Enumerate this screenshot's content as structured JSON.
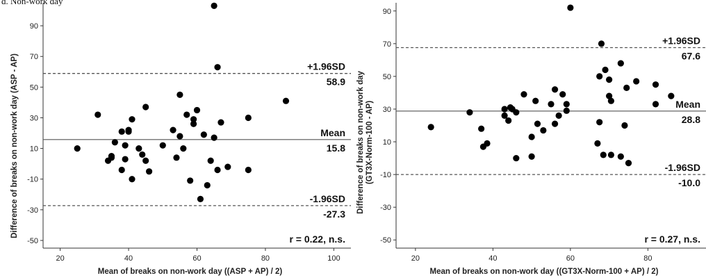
{
  "page": {
    "top_label": "d. Non-work day"
  },
  "chart_data": [
    {
      "type": "scatter",
      "title": "",
      "xlabel": "Mean of breaks on non-work day ((ASP + AP) / 2)",
      "ylabel": "Difference of breaks on non-work day (ASP - AP)",
      "xlim": [
        15,
        105
      ],
      "ylim": [
        -55,
        105
      ],
      "xticks": [
        20,
        40,
        60,
        80,
        100
      ],
      "yticks": [
        -50,
        -30,
        -10,
        10,
        30,
        50,
        70,
        90
      ],
      "grid": false,
      "lines": [
        {
          "name": "+1.96SD",
          "value": 58.9,
          "label": "+1.96SD",
          "value_label": "58.9",
          "style": "dashed"
        },
        {
          "name": "Mean",
          "value": 15.8,
          "label": "Mean",
          "value_label": "15.8",
          "style": "solid"
        },
        {
          "name": "-1.96SD",
          "value": -27.3,
          "label": "-1.96SD",
          "value_label": "-27.3",
          "style": "dashed"
        }
      ],
      "annotation": "r = 0.22, n.s.",
      "points": [
        [
          25,
          10
        ],
        [
          31,
          32
        ],
        [
          34,
          2
        ],
        [
          35,
          4
        ],
        [
          35,
          5
        ],
        [
          36,
          14
        ],
        [
          38,
          21
        ],
        [
          38,
          -4
        ],
        [
          39,
          12
        ],
        [
          39,
          3
        ],
        [
          40,
          22
        ],
        [
          40,
          21
        ],
        [
          41,
          -10
        ],
        [
          41,
          29
        ],
        [
          43,
          10
        ],
        [
          44,
          6
        ],
        [
          45,
          2
        ],
        [
          45,
          37
        ],
        [
          46,
          -5
        ],
        [
          50,
          12
        ],
        [
          53,
          22
        ],
        [
          54,
          4
        ],
        [
          55,
          18
        ],
        [
          55,
          45
        ],
        [
          56,
          10
        ],
        [
          57,
          32
        ],
        [
          58,
          -11
        ],
        [
          59,
          29
        ],
        [
          59,
          26
        ],
        [
          60,
          35
        ],
        [
          61,
          -23
        ],
        [
          62,
          19
        ],
        [
          63,
          -14
        ],
        [
          64,
          2
        ],
        [
          65,
          17
        ],
        [
          65,
          103
        ],
        [
          66,
          -4
        ],
        [
          66,
          63
        ],
        [
          67,
          27
        ],
        [
          69,
          -2
        ],
        [
          75,
          30
        ],
        [
          75,
          -4
        ],
        [
          86,
          41
        ]
      ]
    },
    {
      "type": "scatter",
      "title": "",
      "xlabel": "Mean of breaks on non-work day ((GT3X-Norm-100 + AP) / 2)",
      "ylabel": "Difference of breaks on non-work day (GT3X-Norm-100 - AP)",
      "xlim": [
        15,
        95
      ],
      "ylim": [
        -55,
        95
      ],
      "xticks": [
        20,
        40,
        60,
        80
      ],
      "yticks": [
        -50,
        -30,
        -10,
        10,
        30,
        50,
        70,
        90
      ],
      "grid": false,
      "lines": [
        {
          "name": "+1.96SD",
          "value": 67.6,
          "label": "+1.96SD",
          "value_label": "67.6",
          "style": "dashed"
        },
        {
          "name": "Mean",
          "value": 28.8,
          "label": "Mean",
          "value_label": "28.8",
          "style": "solid"
        },
        {
          "name": "-1.96SD",
          "value": -10.0,
          "label": "-1.96SD",
          "value_label": "-10.0",
          "style": "dashed"
        }
      ],
      "annotation": "r = 0.27, n.s.",
      "points": [
        [
          24,
          19
        ],
        [
          34,
          28
        ],
        [
          37,
          18
        ],
        [
          37.5,
          7
        ],
        [
          38.5,
          9
        ],
        [
          43,
          30
        ],
        [
          43,
          26
        ],
        [
          44,
          23
        ],
        [
          44.5,
          31
        ],
        [
          45,
          30
        ],
        [
          46,
          28
        ],
        [
          46,
          0
        ],
        [
          48,
          39
        ],
        [
          50,
          13
        ],
        [
          50,
          1
        ],
        [
          51,
          35
        ],
        [
          51.5,
          21
        ],
        [
          53,
          17
        ],
        [
          55,
          33
        ],
        [
          56,
          42
        ],
        [
          56,
          21
        ],
        [
          57,
          26
        ],
        [
          58,
          39
        ],
        [
          59,
          33
        ],
        [
          59,
          29
        ],
        [
          60,
          92
        ],
        [
          67,
          9
        ],
        [
          67.5,
          50
        ],
        [
          67.5,
          22
        ],
        [
          68,
          70
        ],
        [
          68.5,
          2
        ],
        [
          69,
          54
        ],
        [
          70,
          48
        ],
        [
          70,
          38
        ],
        [
          70.5,
          35
        ],
        [
          70.5,
          2
        ],
        [
          73,
          58
        ],
        [
          73,
          1
        ],
        [
          74,
          20
        ],
        [
          74.5,
          43
        ],
        [
          75,
          -3
        ],
        [
          77,
          47
        ],
        [
          82,
          45
        ],
        [
          82,
          33
        ],
        [
          86,
          38
        ]
      ]
    }
  ]
}
